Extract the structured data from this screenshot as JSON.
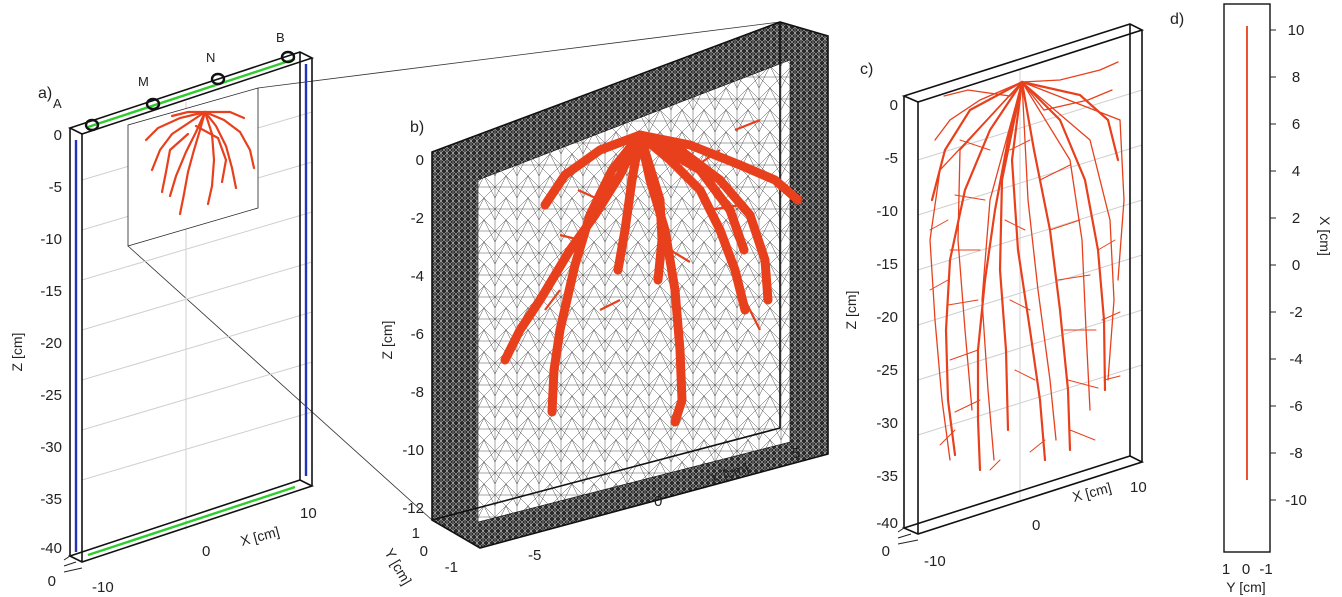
{
  "panels": {
    "a": {
      "label": "a)",
      "z_axis": {
        "label": "Z [cm]",
        "ticks": [
          "0",
          "-5",
          "-10",
          "-15",
          "-20",
          "-25",
          "-30",
          "-35",
          "-40"
        ]
      },
      "x_axis": {
        "label": "X [cm]",
        "ticks": [
          "-10",
          "0",
          "10"
        ]
      },
      "y_tick": "0",
      "electrodes": [
        "A",
        "M",
        "N",
        "B"
      ],
      "colors": {
        "root": "#e8401c",
        "side_boundary": "#2233bb",
        "top_bottom_boundary": "#2ecc2e"
      }
    },
    "b": {
      "label": "b)",
      "z_axis": {
        "label": "Z [cm]",
        "ticks": [
          "0",
          "-2",
          "-4",
          "-6",
          "-8",
          "-10",
          "-12"
        ]
      },
      "x_axis": {
        "label": "X [cm]",
        "ticks": [
          "-5",
          "0",
          "5"
        ]
      },
      "y_axis": {
        "label": "Y [cm]",
        "ticks": [
          "1",
          "0",
          "-1"
        ]
      },
      "colors": {
        "root": "#e8401c",
        "mesh": "#111111"
      }
    },
    "c": {
      "label": "c)",
      "z_axis": {
        "label": "Z [cm]",
        "ticks": [
          "0",
          "-5",
          "-10",
          "-15",
          "-20",
          "-25",
          "-30",
          "-35",
          "-40"
        ]
      },
      "x_axis": {
        "label": "X [cm]",
        "ticks": [
          "-10",
          "0",
          "10"
        ]
      },
      "y_tick": "0",
      "colors": {
        "root": "#e8401c"
      }
    },
    "d": {
      "label": "d)",
      "x_axis": {
        "label": "X [cm]",
        "ticks": [
          "10",
          "8",
          "6",
          "4",
          "2",
          "0",
          "-2",
          "-4",
          "-6",
          "-8",
          "-10"
        ]
      },
      "y_axis": {
        "label": "Y [cm]",
        "ticks": [
          "1",
          "0",
          "-1"
        ]
      },
      "colors": {
        "root": "#e8401c"
      }
    }
  }
}
